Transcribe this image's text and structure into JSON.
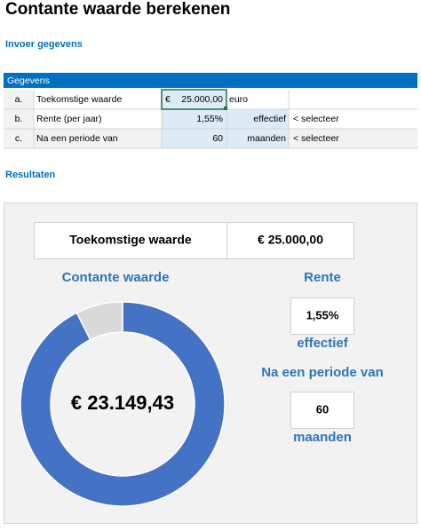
{
  "header": {
    "title": "Contante waarde berekenen"
  },
  "input": {
    "heading": "Invoer gegevens",
    "table": {
      "title": "Gegevens",
      "rows": [
        {
          "letter": "a.",
          "label": "Toekomstige waarde",
          "currency": "€",
          "value": "25.000,00",
          "unit": "euro"
        },
        {
          "letter": "b.",
          "label": "Rente (per jaar)",
          "value": "1,55%",
          "unit": "effectief",
          "note": "< selecteer"
        },
        {
          "letter": "c.",
          "label": "Na een periode van",
          "value": "60",
          "unit": "maanden",
          "note": "< selecteer"
        }
      ]
    }
  },
  "results": {
    "heading": "Resultaten",
    "future_label": "Toekomstige waarde",
    "future_value": "€ 25.000,00",
    "pv_label": "Contante waarde",
    "pv_value": "€ 23.149,43",
    "donut": {
      "values": [
        23149.43,
        1850.57
      ],
      "colors": [
        "#4472c4",
        "#d9d9d9"
      ]
    },
    "rate_label": "Rente",
    "rate_value": "1,55%",
    "rate_type": "effectief",
    "period_label": "Na een periode van",
    "period_value": "60",
    "period_unit": "maanden"
  }
}
